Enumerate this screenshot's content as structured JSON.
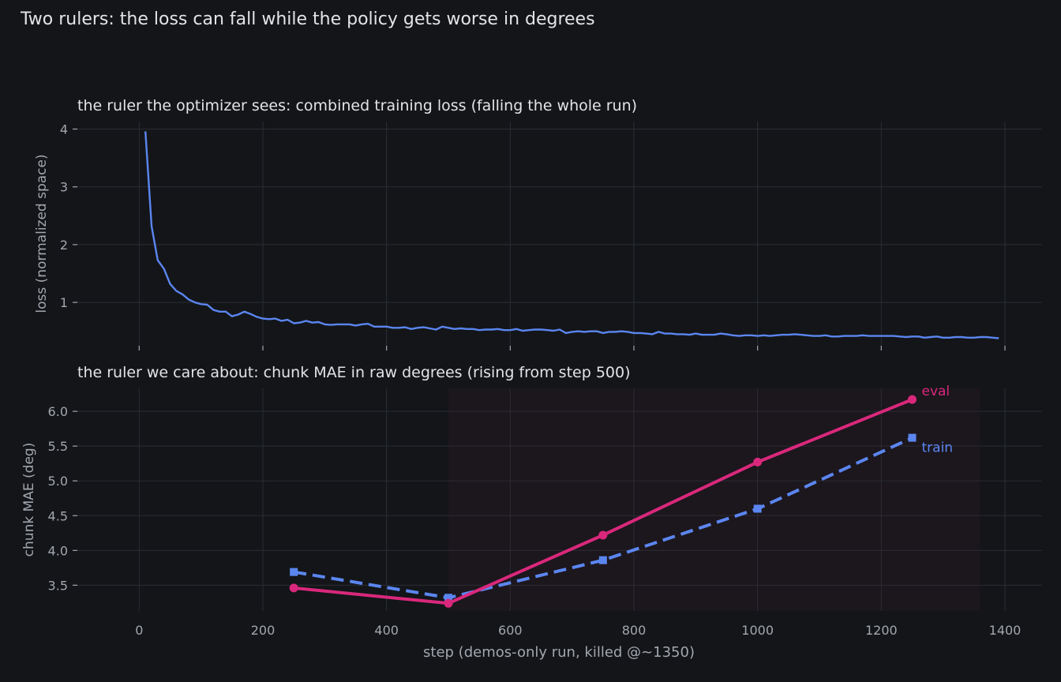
{
  "title": "Two rulers: the loss can fall while the policy gets worse in degrees",
  "colors": {
    "background": "#131519",
    "grid": "#2a2d33",
    "axis_text": "#a3a7ae",
    "title_text": "#e2e4e8",
    "loss_line": "#5b86f0",
    "eval": "#d9287c",
    "train": "#5b86f0",
    "shade": "#1c161d"
  },
  "chart_data": [
    {
      "type": "line",
      "title": "the ruler the optimizer sees: combined training loss (falling the whole run)",
      "xlabel": "",
      "ylabel": "loss (normalized space)",
      "xlim": [
        -100,
        1460
      ],
      "ylim": [
        0.25,
        4.13
      ],
      "x_ticks": [
        0,
        200,
        400,
        600,
        800,
        1000,
        1200,
        1400
      ],
      "y_ticks": [
        1,
        2,
        3,
        4
      ],
      "grid": true,
      "series": [
        {
          "x": [
            10,
            20,
            30,
            40,
            50,
            60,
            70,
            80,
            90,
            100,
            110,
            120,
            130,
            140,
            150,
            160,
            170,
            180,
            190,
            200,
            210,
            220,
            230,
            240,
            250,
            260,
            270,
            280,
            290,
            300,
            310,
            320,
            330,
            340,
            350,
            360,
            370,
            380,
            390,
            400,
            410,
            420,
            430,
            440,
            450,
            460,
            470,
            480,
            490,
            500,
            510,
            520,
            530,
            540,
            550,
            560,
            570,
            580,
            590,
            600,
            610,
            620,
            630,
            640,
            650,
            660,
            670,
            680,
            690,
            700,
            710,
            720,
            730,
            740,
            750,
            760,
            770,
            780,
            790,
            800,
            810,
            820,
            830,
            840,
            850,
            860,
            870,
            880,
            890,
            900,
            910,
            920,
            930,
            940,
            950,
            960,
            970,
            980,
            990,
            1000,
            1010,
            1020,
            1030,
            1040,
            1050,
            1060,
            1070,
            1080,
            1090,
            1100,
            1110,
            1120,
            1130,
            1140,
            1150,
            1160,
            1170,
            1180,
            1190,
            1200,
            1210,
            1220,
            1230,
            1240,
            1250,
            1260,
            1270,
            1280,
            1290,
            1300,
            1310,
            1320,
            1330,
            1340,
            1350,
            1360,
            1370,
            1380,
            1390
          ],
          "values": [
            3.96,
            2.32,
            1.73,
            1.58,
            1.32,
            1.2,
            1.14,
            1.05,
            1.0,
            0.97,
            0.96,
            0.87,
            0.84,
            0.84,
            0.76,
            0.79,
            0.84,
            0.8,
            0.75,
            0.72,
            0.71,
            0.72,
            0.68,
            0.7,
            0.64,
            0.65,
            0.68,
            0.65,
            0.66,
            0.62,
            0.61,
            0.62,
            0.62,
            0.62,
            0.6,
            0.62,
            0.63,
            0.58,
            0.58,
            0.58,
            0.56,
            0.56,
            0.57,
            0.54,
            0.56,
            0.57,
            0.55,
            0.53,
            0.58,
            0.56,
            0.54,
            0.55,
            0.54,
            0.54,
            0.52,
            0.53,
            0.53,
            0.54,
            0.52,
            0.52,
            0.54,
            0.51,
            0.52,
            0.53,
            0.53,
            0.52,
            0.51,
            0.53,
            0.47,
            0.49,
            0.5,
            0.49,
            0.5,
            0.5,
            0.47,
            0.49,
            0.49,
            0.5,
            0.49,
            0.47,
            0.47,
            0.46,
            0.45,
            0.49,
            0.46,
            0.46,
            0.45,
            0.45,
            0.44,
            0.46,
            0.44,
            0.44,
            0.44,
            0.46,
            0.45,
            0.43,
            0.42,
            0.43,
            0.43,
            0.42,
            0.43,
            0.42,
            0.43,
            0.44,
            0.44,
            0.45,
            0.44,
            0.43,
            0.42,
            0.42,
            0.43,
            0.41,
            0.41,
            0.42,
            0.42,
            0.42,
            0.43,
            0.42,
            0.42,
            0.42,
            0.42,
            0.42,
            0.41,
            0.4,
            0.41,
            0.41,
            0.39,
            0.4,
            0.41,
            0.39,
            0.39,
            0.4,
            0.4,
            0.39,
            0.39,
            0.4,
            0.4,
            0.39,
            0.38
          ]
        }
      ]
    },
    {
      "type": "line",
      "title": "the ruler we care about: chunk MAE in raw degrees (rising from step 500)",
      "xlabel": "step (demos-only run, killed @~1350)",
      "ylabel": "chunk MAE (deg)",
      "xlim": [
        -100,
        1460
      ],
      "ylim": [
        3.13,
        6.33
      ],
      "x_ticks": [
        0,
        200,
        400,
        600,
        800,
        1000,
        1200,
        1400
      ],
      "y_ticks": [
        3.5,
        4.0,
        4.5,
        5.0,
        5.5,
        6.0
      ],
      "y_tick_labels": [
        "3.5",
        "4.0",
        "4.5",
        "5.0",
        "5.5",
        "6.0"
      ],
      "grid": true,
      "shaded_region": [
        500,
        1360
      ],
      "series": [
        {
          "name": "eval",
          "style": "solid",
          "marker": "circle",
          "x": [
            250,
            500,
            750,
            1000,
            1250
          ],
          "values": [
            3.46,
            3.24,
            4.22,
            5.27,
            6.17
          ]
        },
        {
          "name": "train",
          "style": "dashed",
          "marker": "square",
          "x": [
            250,
            500,
            750,
            1000,
            1250
          ],
          "values": [
            3.69,
            3.32,
            3.86,
            4.6,
            5.62
          ]
        }
      ]
    }
  ]
}
